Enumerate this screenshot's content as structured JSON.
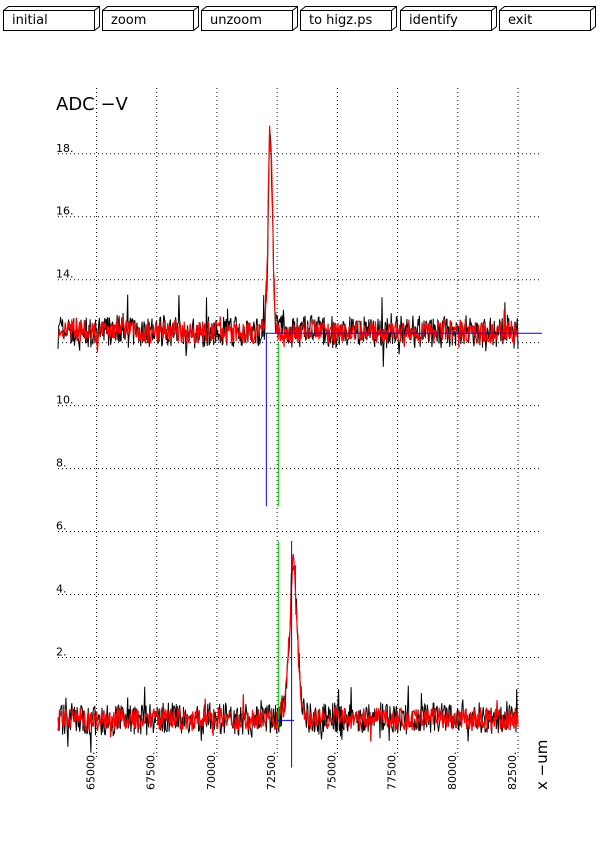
{
  "toolbar": {
    "buttons": [
      {
        "name": "initial-button",
        "label": "initial"
      },
      {
        "name": "zoom-button",
        "label": "zoom"
      },
      {
        "name": "unzoom-button",
        "label": "unzoom"
      },
      {
        "name": "to-higz-button",
        "label": "to higz.ps"
      },
      {
        "name": "identify-button",
        "label": "identify"
      },
      {
        "name": "exit-button",
        "label": "exit"
      }
    ]
  },
  "chart_data": {
    "type": "line",
    "title": "ADC  −V",
    "xlabel": "x  −um",
    "ylabel": "",
    "xlim": [
      63400,
      82500
    ],
    "ylim": [
      -0.4,
      19.2
    ],
    "x_ticks": [
      65000,
      67500,
      70000,
      72500,
      75000,
      77500,
      80000,
      82500
    ],
    "x_tick_labels": [
      "65000.",
      "67500.",
      "70000.",
      "72500.",
      "75000.",
      "77500.",
      "80000.",
      "82500."
    ],
    "y_ticks": [
      2,
      4,
      6,
      8,
      10,
      12,
      14,
      16,
      18
    ],
    "y_tick_labels": [
      "2.",
      "4.",
      "6.",
      "8.",
      "10.",
      "",
      "14.",
      "16.",
      "18."
    ],
    "grid": true,
    "colors": {
      "black": "#000000",
      "red": "#ff0000",
      "blue": "#0000ff",
      "green": "#00cc00"
    },
    "series": [
      {
        "color": "#ff0000",
        "x": [
          63400,
          64000,
          65000,
          66000,
          67000,
          68000,
          69000,
          70000,
          71000,
          71800,
          72000,
          72100,
          72150,
          72200,
          72280,
          72350,
          72400,
          72500,
          72600,
          72700,
          73000,
          74000,
          75000,
          76000,
          77000,
          78000,
          79000,
          80000,
          81000,
          82000,
          82500
        ],
        "y": [
          12.3,
          12.4,
          12.3,
          12.5,
          12.3,
          12.4,
          12.3,
          12.4,
          12.3,
          12.3,
          12.6,
          14.5,
          17.8,
          18.6,
          17.5,
          14.5,
          12.9,
          12.4,
          12.3,
          12.4,
          12.3,
          12.4,
          12.3,
          12.4,
          12.3,
          12.4,
          12.3,
          12.4,
          12.3,
          12.4,
          12.3
        ]
      },
      {
        "color": "#ff0000",
        "x": [
          63400,
          64000,
          65000,
          66000,
          67000,
          68000,
          69000,
          70000,
          71000,
          72000,
          72500,
          72800,
          73000,
          73100,
          73150,
          73200,
          73300,
          73400,
          73500,
          73600,
          73800,
          74000,
          75000,
          76000,
          77000,
          78000,
          79000,
          80000,
          81000,
          82000,
          82500
        ],
        "y": [
          0.0,
          0.1,
          0.0,
          0.1,
          0.0,
          0.1,
          0.0,
          0.1,
          0.0,
          0.1,
          0.0,
          0.5,
          2.5,
          4.5,
          5.2,
          4.9,
          3.5,
          1.8,
          0.8,
          0.2,
          0.1,
          0.0,
          0.1,
          0.0,
          0.1,
          0.0,
          0.1,
          0.0,
          0.1,
          0.0,
          0.1
        ]
      }
    ],
    "markers": {
      "blue_vertical": [
        {
          "x": 72050,
          "y": [
            6.8,
            12.3
          ]
        },
        {
          "x": 73100,
          "y": [
            -1.5,
            5.7
          ]
        }
      ],
      "green_vertical": [
        {
          "x": 72550,
          "y": [
            6.8,
            12.0
          ]
        },
        {
          "x": 72550,
          "y": [
            -0.2,
            5.7
          ]
        }
      ],
      "blue_horizontal": [
        {
          "y": 12.3,
          "x": [
            72000,
            83500
          ]
        },
        {
          "y": 0.0,
          "x": [
            72500,
            73200
          ]
        }
      ]
    }
  }
}
